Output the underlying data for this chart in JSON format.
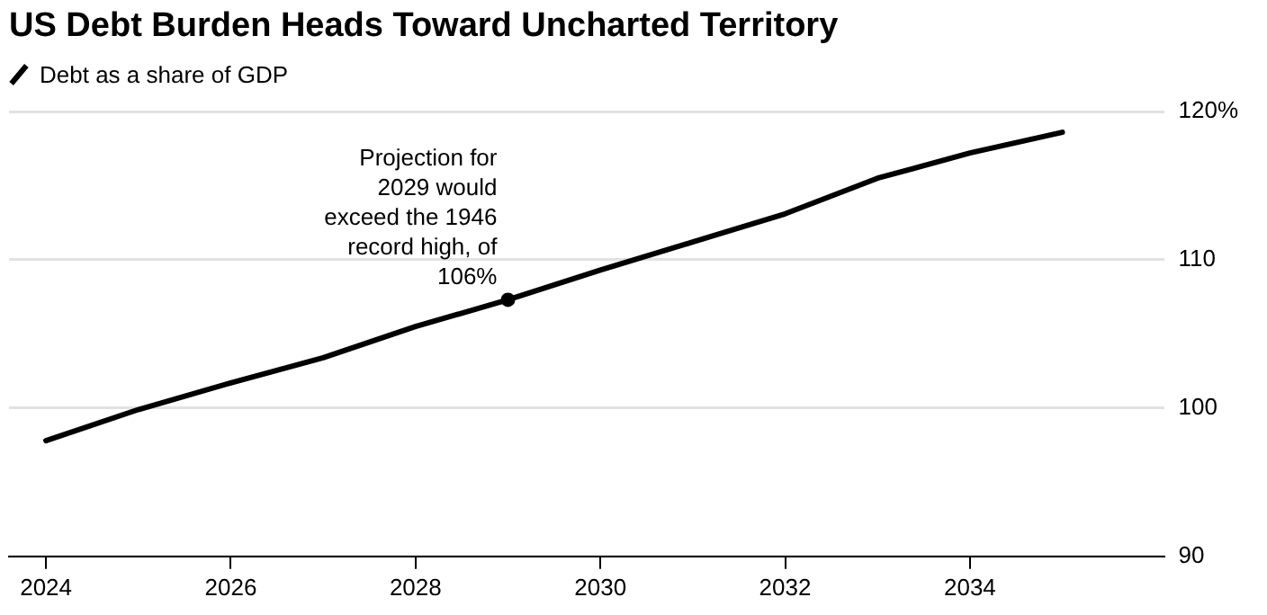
{
  "chart_data": {
    "type": "line",
    "title": "US Debt Burden Heads Toward Uncharted Territory",
    "x": [
      2024,
      2025,
      2026,
      2027,
      2028,
      2029,
      2030,
      2031,
      2032,
      2033,
      2034,
      2035
    ],
    "series": [
      {
        "name": "Debt as a share of GDP",
        "color": "#000000",
        "values": [
          97.8,
          99.9,
          101.7,
          103.4,
          105.5,
          107.3,
          109.3,
          111.2,
          113.1,
          115.5,
          117.2,
          118.6
        ]
      }
    ],
    "xlim": [
      2023.6,
      2036.1
    ],
    "xticks": [
      2024,
      2026,
      2028,
      2030,
      2032,
      2034
    ],
    "ylim": [
      90,
      120
    ],
    "yticks": [
      90,
      100,
      110,
      {
        "value": 120,
        "label": "120%"
      }
    ],
    "annotations": [
      {
        "text": "Projection for 2029 would exceed the 1946 record high, of 106%",
        "x": 2029,
        "y": 107.3
      }
    ],
    "grid": "y",
    "legend": "top left",
    "marker": "none",
    "line_style": "solid"
  }
}
